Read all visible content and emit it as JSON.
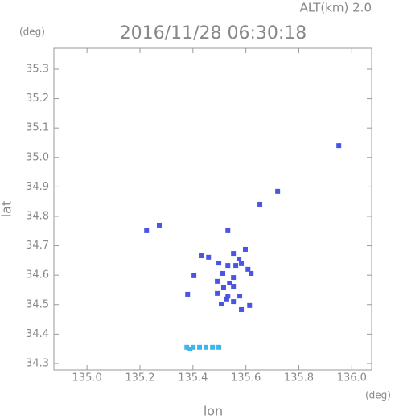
{
  "chart_data": {
    "type": "scatter",
    "title": "2016/11/28 06:30:18",
    "subtitle": "ALT(km) 2.0",
    "y_unit": "(deg)",
    "x_unit": "(deg)",
    "xlabel": "lon",
    "ylabel": "lat",
    "xlim": [
      134.875,
      136.075
    ],
    "ylim": [
      34.278,
      35.371
    ],
    "xticks": [
      {
        "value": 135,
        "label": "135.0"
      },
      135.2,
      135.4,
      135.6,
      135.8,
      {
        "value": 136,
        "label": "136.0"
      }
    ],
    "yticks": [
      34.3,
      34.4,
      34.5,
      34.6,
      34.7,
      34.8,
      34.9,
      {
        "value": 35,
        "label": "35.0"
      },
      35.1,
      35.2,
      35.3
    ],
    "series": [
      {
        "color": "#4a55e6",
        "x": [
          135.951,
          135.72,
          135.225,
          135.273,
          135.532,
          135.653,
          135.404,
          135.38,
          135.598,
          135.574,
          135.553,
          135.498,
          135.459,
          135.431,
          135.532,
          135.562,
          135.583,
          135.513,
          135.553,
          135.492,
          135.538,
          135.516,
          135.553,
          135.492,
          135.532,
          135.507,
          135.553,
          135.577,
          135.583,
          135.614,
          135.62,
          135.608,
          135.528
        ],
        "values": [
          35.04,
          34.885,
          34.751,
          34.77,
          34.751,
          34.841,
          34.598,
          34.535,
          34.688,
          34.655,
          34.674,
          34.641,
          34.661,
          34.666,
          34.633,
          34.633,
          34.639,
          34.606,
          34.592,
          34.579,
          34.573,
          34.557,
          34.562,
          34.538,
          34.529,
          34.502,
          34.51,
          34.529,
          34.483,
          34.497,
          34.606,
          34.62,
          34.519
        ]
      },
      {
        "color": "#3fb6ea",
        "x": [
          135.377,
          135.401,
          135.425,
          135.449,
          135.474,
          135.498,
          135.389
        ],
        "values": [
          34.355,
          34.355,
          34.355,
          34.355,
          34.355,
          34.355,
          34.349
        ]
      }
    ]
  }
}
